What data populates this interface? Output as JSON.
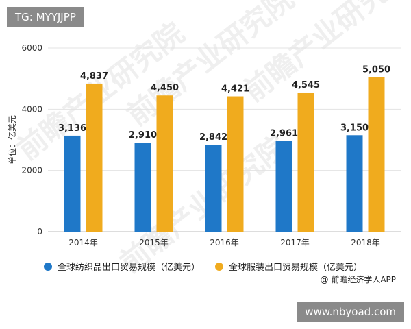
{
  "badge": {
    "text": "TG: MYYJJPP"
  },
  "watermark_url": {
    "text": "www.nbyoad.com"
  },
  "source": {
    "text": "@ 前瞻经济学人APP"
  },
  "watermark_brand": {
    "text": "前瞻产业研究院"
  },
  "colors": {
    "textile": "#1f78c8",
    "apparel": "#f0ab1e",
    "grid": "#e3e3e3",
    "axis": "#bbbbbb"
  },
  "chart_data": {
    "type": "bar",
    "categories": [
      "2014年",
      "2015年",
      "2016年",
      "2017年",
      "2018年"
    ],
    "ylabel": "单位：亿美元",
    "ylim": [
      0,
      6000
    ],
    "yticks": [
      0,
      2000,
      4000,
      6000
    ],
    "yticks_labels": [
      "0",
      "2000",
      "4000",
      "6000"
    ],
    "grid": true,
    "legend_position": "bottom",
    "series": [
      {
        "name": "全球纺织品出口贸易规模（亿美元）",
        "values": [
          3136,
          2910,
          2842,
          2961,
          3150
        ],
        "labels": [
          "3,136",
          "2,910",
          "2,842",
          "2,961",
          "3,150"
        ],
        "color": "#1f78c8"
      },
      {
        "name": "全球服装出口贸易规模（亿美元）",
        "values": [
          4837,
          4450,
          4421,
          4545,
          5050
        ],
        "labels": [
          "4,837",
          "4,450",
          "4,421",
          "4,545",
          "5,050"
        ],
        "color": "#f0ab1e"
      }
    ]
  }
}
